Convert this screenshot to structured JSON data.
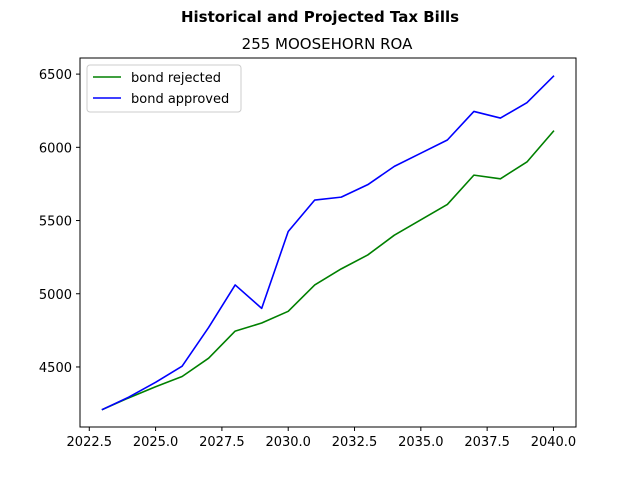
{
  "chart_data": {
    "type": "line",
    "title": "Historical and Projected Tax Bills",
    "subtitle": "255 MOOSEHORN ROA",
    "xlabel": "",
    "ylabel": "",
    "xlim": [
      2022.15,
      2040.85
    ],
    "ylim": [
      4090,
      6610
    ],
    "xticks": [
      2022.5,
      2025.0,
      2027.5,
      2030.0,
      2032.5,
      2035.0,
      2037.5,
      2040.0
    ],
    "xtick_labels": [
      "2022.5",
      "2025.0",
      "2027.5",
      "2030.0",
      "2032.5",
      "2035.0",
      "2037.5",
      "2040.0"
    ],
    "yticks": [
      4500,
      5000,
      5500,
      6000,
      6500
    ],
    "ytick_labels": [
      "4500",
      "5000",
      "5500",
      "6000",
      "6500"
    ],
    "grid": false,
    "legend_position": "upper-left",
    "x": [
      2023,
      2024,
      2025,
      2026,
      2027,
      2028,
      2029,
      2030,
      2031,
      2032,
      2033,
      2034,
      2035,
      2036,
      2037,
      2038,
      2039,
      2040
    ],
    "series": [
      {
        "name": "bond rejected",
        "color": "#008000",
        "values": [
          4210,
          4290,
          4365,
          4435,
          4560,
          4745,
          4800,
          4880,
          5060,
          5170,
          5265,
          5400,
          5505,
          5610,
          5810,
          5785,
          5900,
          6110
        ]
      },
      {
        "name": "bond approved",
        "color": "#0000ff",
        "values": [
          4210,
          4295,
          4395,
          4505,
          4770,
          5060,
          4900,
          5425,
          5640,
          5660,
          5745,
          5870,
          5960,
          6050,
          6245,
          6200,
          6305,
          6485
        ]
      }
    ]
  }
}
